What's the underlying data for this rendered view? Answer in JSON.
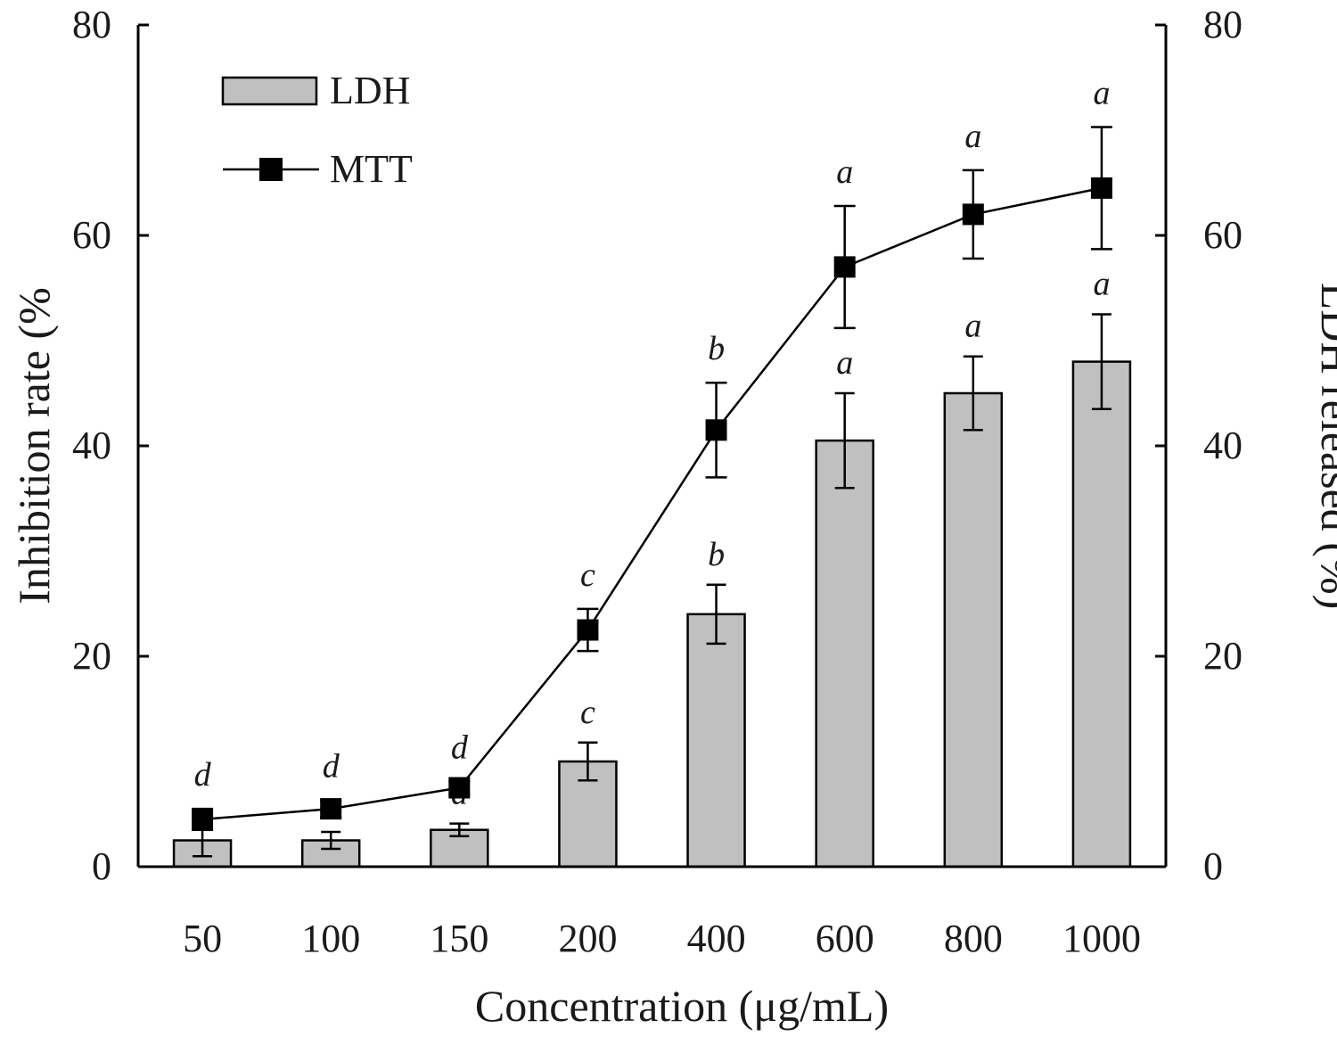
{
  "chart_data": {
    "type": "bar",
    "categories": [
      "50",
      "100",
      "150",
      "200",
      "400",
      "600",
      "800",
      "1000"
    ],
    "xlabel": "Concentration (μg/mL)",
    "ylabel_left": "Inhibition rate (%",
    "ylabel_right": "LDH released (%)",
    "ylim": [
      0,
      80
    ],
    "yticks": [
      "0",
      "20",
      "40",
      "60",
      "80"
    ],
    "grid": false,
    "legend_position": "top-left",
    "series": [
      {
        "name": "LDH",
        "kind": "bar",
        "axis": "right",
        "values": [
          2.5,
          2.5,
          3.5,
          10.0,
          24.0,
          40.5,
          45.0,
          48.0
        ],
        "errors": [
          1.5,
          0.8,
          0.6,
          1.8,
          2.8,
          4.5,
          3.5,
          4.5
        ],
        "labels": [
          "",
          "",
          "d",
          "c",
          "b",
          "a",
          "a",
          "a"
        ],
        "color": "#c0c0c0"
      },
      {
        "name": "MTT",
        "kind": "line",
        "axis": "left",
        "values": [
          4.5,
          5.5,
          7.5,
          22.5,
          41.5,
          57.0,
          62.0,
          64.5
        ],
        "errors": [
          1.0,
          0.8,
          0.6,
          2.0,
          4.5,
          5.8,
          4.2,
          5.8
        ],
        "labels": [
          "d",
          "d",
          "d",
          "c",
          "b",
          "a",
          "a",
          "a"
        ],
        "color": "#000000"
      }
    ]
  }
}
